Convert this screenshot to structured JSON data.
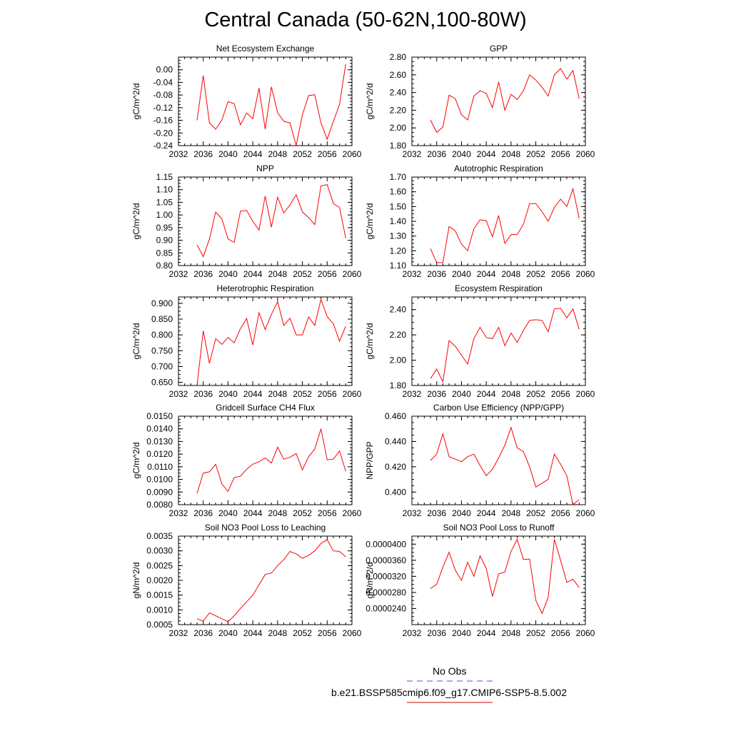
{
  "title": "Central Canada (50-62N,100-80W)",
  "legend": {
    "entries": [
      {
        "label": "No Obs",
        "color": "#4a5ad8",
        "dash": true
      },
      {
        "label": "b.e21.BSSP585cmip6.f09_g17.CMIP6-SSP5-8.5.002",
        "color": "#d00000",
        "dash": false
      }
    ]
  },
  "chart_data": [
    {
      "type": "line",
      "title": "Net Ecosystem Exchange",
      "xlabel": "",
      "ylabel": "gC/m^2/d",
      "xlim": [
        2032,
        2060
      ],
      "xticks": [
        "2032",
        "2036",
        "2040",
        "2044",
        "2048",
        "2052",
        "2056",
        "2060"
      ],
      "ylim": [
        -0.24,
        0.04
      ],
      "yticks": [
        "-0.24",
        "-0.20",
        "-0.16",
        "-0.12",
        "-0.08",
        "-0.04",
        "0.00"
      ],
      "x": [
        2035,
        2036,
        2037,
        2038,
        2039,
        2040,
        2041,
        2042,
        2043,
        2044,
        2045,
        2046,
        2047,
        2048,
        2049,
        2050,
        2051,
        2052,
        2053,
        2054,
        2055,
        2056,
        2057,
        2058,
        2059
      ],
      "series": [
        {
          "values": [
            -0.16,
            -0.018,
            -0.168,
            -0.188,
            -0.159,
            -0.101,
            -0.107,
            -0.174,
            -0.137,
            -0.155,
            -0.058,
            -0.188,
            -0.054,
            -0.136,
            -0.163,
            -0.168,
            -0.24,
            -0.142,
            -0.082,
            -0.079,
            -0.168,
            -0.22,
            -0.163,
            -0.11,
            0.018
          ],
          "color": "#ff0000"
        }
      ]
    },
    {
      "type": "line",
      "title": "GPP",
      "xlabel": "",
      "ylabel": "gC/m^2/d",
      "xlim": [
        2032,
        2060
      ],
      "xticks": [
        "2032",
        "2036",
        "2040",
        "2044",
        "2048",
        "2052",
        "2056",
        "2060"
      ],
      "ylim": [
        1.8,
        2.8
      ],
      "yticks": [
        "1.80",
        "2.00",
        "2.20",
        "2.40",
        "2.60",
        "2.80"
      ],
      "x": [
        2035,
        2036,
        2037,
        2038,
        2039,
        2040,
        2041,
        2042,
        2043,
        2044,
        2045,
        2046,
        2047,
        2048,
        2049,
        2050,
        2051,
        2052,
        2053,
        2054,
        2055,
        2056,
        2057,
        2058,
        2059
      ],
      "series": [
        {
          "values": [
            2.09,
            1.95,
            2.01,
            2.37,
            2.33,
            2.15,
            2.09,
            2.36,
            2.42,
            2.39,
            2.23,
            2.52,
            2.2,
            2.38,
            2.32,
            2.42,
            2.6,
            2.54,
            2.46,
            2.36,
            2.6,
            2.67,
            2.55,
            2.65,
            2.33
          ],
          "color": "#ff0000"
        }
      ]
    },
    {
      "type": "line",
      "title": "NPP",
      "xlabel": "",
      "ylabel": "gC/m^2/d",
      "xlim": [
        2032,
        2060
      ],
      "xticks": [
        "2032",
        "2036",
        "2040",
        "2044",
        "2048",
        "2052",
        "2056",
        "2060"
      ],
      "ylim": [
        0.8,
        1.15
      ],
      "yticks": [
        "0.80",
        "0.85",
        "0.90",
        "0.95",
        "1.00",
        "1.05",
        "1.10",
        "1.15"
      ],
      "x": [
        2035,
        2036,
        2037,
        2038,
        2039,
        2040,
        2041,
        2042,
        2043,
        2044,
        2045,
        2046,
        2047,
        2048,
        2049,
        2050,
        2051,
        2052,
        2053,
        2054,
        2055,
        2056,
        2057,
        2058,
        2059
      ],
      "series": [
        {
          "values": [
            0.882,
            0.835,
            0.905,
            1.012,
            0.985,
            0.905,
            0.892,
            1.015,
            1.018,
            0.975,
            0.94,
            1.075,
            0.952,
            1.07,
            1.008,
            1.04,
            1.08,
            1.012,
            0.99,
            0.962,
            1.115,
            1.12,
            1.045,
            1.03,
            0.908
          ],
          "color": "#ff0000"
        }
      ]
    },
    {
      "type": "line",
      "title": "Autotrophic Respiration",
      "xlabel": "",
      "ylabel": "gC/m^2/d",
      "xlim": [
        2032,
        2060
      ],
      "xticks": [
        "2032",
        "2036",
        "2040",
        "2044",
        "2048",
        "2052",
        "2056",
        "2060"
      ],
      "ylim": [
        1.1,
        1.7
      ],
      "yticks": [
        "1.10",
        "1.20",
        "1.30",
        "1.40",
        "1.50",
        "1.60",
        "1.70"
      ],
      "x": [
        2035,
        2036,
        2037,
        2038,
        2039,
        2040,
        2041,
        2042,
        2043,
        2044,
        2045,
        2046,
        2047,
        2048,
        2049,
        2050,
        2051,
        2052,
        2053,
        2054,
        2055,
        2056,
        2057,
        2058,
        2059
      ],
      "series": [
        {
          "values": [
            1.215,
            1.12,
            1.12,
            1.365,
            1.335,
            1.245,
            1.2,
            1.35,
            1.41,
            1.405,
            1.295,
            1.44,
            1.25,
            1.31,
            1.31,
            1.38,
            1.52,
            1.52,
            1.465,
            1.4,
            1.495,
            1.55,
            1.5,
            1.62,
            1.42
          ],
          "color": "#ff0000"
        }
      ]
    },
    {
      "type": "line",
      "title": "Heterotrophic Respiration",
      "xlabel": "",
      "ylabel": "gC/m^2/d",
      "xlim": [
        2032,
        2060
      ],
      "xticks": [
        "2032",
        "2036",
        "2040",
        "2044",
        "2048",
        "2052",
        "2056",
        "2060"
      ],
      "ylim": [
        0.64,
        0.92
      ],
      "yticks": [
        "0.650",
        "0.700",
        "0.750",
        "0.800",
        "0.850",
        "0.900"
      ],
      "x": [
        2035,
        2036,
        2037,
        2038,
        2039,
        2040,
        2041,
        2042,
        2043,
        2044,
        2045,
        2046,
        2047,
        2048,
        2049,
        2050,
        2051,
        2052,
        2053,
        2054,
        2055,
        2056,
        2057,
        2058,
        2059
      ],
      "series": [
        {
          "values": [
            0.64,
            0.813,
            0.71,
            0.788,
            0.77,
            0.792,
            0.775,
            0.82,
            0.852,
            0.768,
            0.87,
            0.817,
            0.865,
            0.905,
            0.83,
            0.853,
            0.8,
            0.8,
            0.857,
            0.83,
            0.912,
            0.858,
            0.835,
            0.78,
            0.827
          ],
          "color": "#ff0000"
        }
      ]
    },
    {
      "type": "line",
      "title": "Ecosystem Respiration",
      "xlabel": "",
      "ylabel": "gC/m^2/d",
      "xlim": [
        2032,
        2060
      ],
      "xticks": [
        "2032",
        "2036",
        "2040",
        "2044",
        "2048",
        "2052",
        "2056",
        "2060"
      ],
      "ylim": [
        1.8,
        2.5
      ],
      "yticks": [
        "1.80",
        "2.00",
        "2.20",
        "2.40"
      ],
      "x": [
        2035,
        2036,
        2037,
        2038,
        2039,
        2040,
        2041,
        2042,
        2043,
        2044,
        2045,
        2046,
        2047,
        2048,
        2049,
        2050,
        2051,
        2052,
        2053,
        2054,
        2055,
        2056,
        2057,
        2058,
        2059
      ],
      "series": [
        {
          "values": [
            1.855,
            1.93,
            1.83,
            2.155,
            2.11,
            2.04,
            1.97,
            2.17,
            2.26,
            2.18,
            2.17,
            2.26,
            2.115,
            2.215,
            2.14,
            2.235,
            2.315,
            2.32,
            2.315,
            2.225,
            2.405,
            2.41,
            2.335,
            2.405,
            2.245
          ],
          "color": "#ff0000"
        }
      ]
    },
    {
      "type": "line",
      "title": "Gridcell Surface CH4 Flux",
      "xlabel": "",
      "ylabel": "gC/m^2/d",
      "xlim": [
        2032,
        2060
      ],
      "xticks": [
        "2032",
        "2036",
        "2040",
        "2044",
        "2048",
        "2052",
        "2056",
        "2060"
      ],
      "ylim": [
        0.008,
        0.015
      ],
      "yticks": [
        "0.0080",
        "0.0090",
        "0.0100",
        "0.0110",
        "0.0120",
        "0.0130",
        "0.0140",
        "0.0150"
      ],
      "x": [
        2035,
        2036,
        2037,
        2038,
        2039,
        2040,
        2041,
        2042,
        2043,
        2044,
        2045,
        2046,
        2047,
        2048,
        2049,
        2050,
        2051,
        2052,
        2053,
        2054,
        2055,
        2056,
        2057,
        2058,
        2059
      ],
      "series": [
        {
          "values": [
            0.0089,
            0.0105,
            0.0106,
            0.0112,
            0.00965,
            0.00905,
            0.01015,
            0.01025,
            0.0108,
            0.0112,
            0.0114,
            0.0117,
            0.0113,
            0.01255,
            0.0116,
            0.01175,
            0.01205,
            0.01075,
            0.0118,
            0.0124,
            0.014,
            0.01155,
            0.0116,
            0.01225,
            0.01065
          ],
          "color": "#ff0000"
        }
      ]
    },
    {
      "type": "line",
      "title": "Carbon Use Efficiency (NPP/GPP)",
      "xlabel": "",
      "ylabel": "NPP/GPP",
      "xlim": [
        2032,
        2060
      ],
      "xticks": [
        "2032",
        "2036",
        "2040",
        "2044",
        "2048",
        "2052",
        "2056",
        "2060"
      ],
      "ylim": [
        0.39,
        0.46
      ],
      "yticks": [
        "0.400",
        "0.420",
        "0.440",
        "0.460"
      ],
      "x": [
        2035,
        2036,
        2037,
        2038,
        2039,
        2040,
        2041,
        2042,
        2043,
        2044,
        2045,
        2046,
        2047,
        2048,
        2049,
        2050,
        2051,
        2052,
        2053,
        2054,
        2055,
        2056,
        2057,
        2058,
        2059
      ],
      "series": [
        {
          "values": [
            0.425,
            0.43,
            0.446,
            0.428,
            0.426,
            0.424,
            0.428,
            0.43,
            0.421,
            0.413,
            0.418,
            0.427,
            0.437,
            0.451,
            0.435,
            0.432,
            0.42,
            0.404,
            0.407,
            0.41,
            0.43,
            0.422,
            0.413,
            0.39,
            0.394
          ],
          "color": "#ff0000"
        }
      ]
    },
    {
      "type": "line",
      "title": "Soil NO3 Pool Loss to Leaching",
      "xlabel": "",
      "ylabel": "gN/m^2/d",
      "xlim": [
        2032,
        2060
      ],
      "xticks": [
        "2032",
        "2036",
        "2040",
        "2044",
        "2048",
        "2052",
        "2056",
        "2060"
      ],
      "ylim": [
        0.0005,
        0.0035
      ],
      "yticks": [
        "0.0005",
        "0.0010",
        "0.0015",
        "0.0020",
        "0.0025",
        "0.0030",
        "0.0035"
      ],
      "x": [
        2035,
        2036,
        2037,
        2038,
        2039,
        2040,
        2041,
        2042,
        2043,
        2044,
        2045,
        2046,
        2047,
        2048,
        2049,
        2050,
        2051,
        2052,
        2053,
        2054,
        2055,
        2056,
        2057,
        2058,
        2059
      ],
      "series": [
        {
          "values": [
            0.0007,
            0.00062,
            0.0009,
            0.0008,
            0.0007,
            0.0006,
            0.0008,
            0.00105,
            0.00128,
            0.0015,
            0.00185,
            0.0022,
            0.00225,
            0.0025,
            0.0027,
            0.00298,
            0.0029,
            0.00275,
            0.00285,
            0.003,
            0.00325,
            0.00338,
            0.003,
            0.00298,
            0.0028
          ],
          "color": "#ff0000"
        }
      ]
    },
    {
      "type": "line",
      "title": "Soil NO3 Pool Loss to Runoff",
      "xlabel": "",
      "ylabel": "gN/m^2/d",
      "xlim": [
        2032,
        2060
      ],
      "xticks": [
        "2032",
        "2036",
        "2040",
        "2044",
        "2048",
        "2052",
        "2056",
        "2060"
      ],
      "ylim": [
        2e-05,
        4.2e-05
      ],
      "yticks": [
        "0.0000240",
        "0.0000280",
        "0.0000320",
        "0.0000360",
        "0.0000400"
      ],
      "x": [
        2035,
        2036,
        2037,
        2038,
        2039,
        2040,
        2041,
        2042,
        2043,
        2044,
        2045,
        2046,
        2047,
        2048,
        2049,
        2050,
        2051,
        2052,
        2053,
        2054,
        2055,
        2056,
        2057,
        2058,
        2059
      ],
      "series": [
        {
          "values": [
            2.9e-05,
            3e-05,
            3.43e-05,
            3.8e-05,
            3.35e-05,
            3.1e-05,
            3.55e-05,
            3.2e-05,
            3.71e-05,
            3.4e-05,
            2.7e-05,
            3.26e-05,
            3.31e-05,
            3.82e-05,
            4.12e-05,
            3.62e-05,
            3.63e-05,
            2.6e-05,
            2.28e-05,
            2.68e-05,
            4.12e-05,
            3.6e-05,
            3.05e-05,
            3.13e-05,
            2.92e-05
          ],
          "color": "#ff0000"
        }
      ]
    }
  ]
}
